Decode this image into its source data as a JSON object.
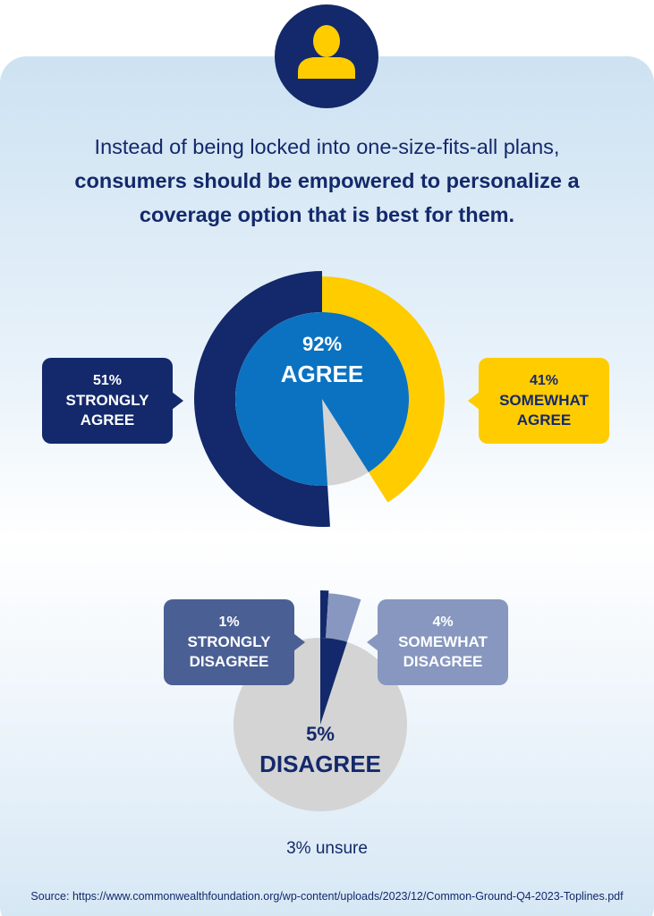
{
  "headline": {
    "lead": "Instead of being locked into one-size-fits-all plans,",
    "bold": "consumers should be empowered to personalize a coverage option that is best for them."
  },
  "chart_data": [
    {
      "type": "pie",
      "total": {
        "value": 92,
        "label": "92%",
        "name": "AGREE"
      },
      "categories": [
        "STRONGLY AGREE",
        "SOMEWHAT AGREE"
      ],
      "values": [
        51,
        41
      ],
      "value_labels": [
        "51%",
        "41%"
      ],
      "colors": [
        "#13296b",
        "#ffcc00"
      ],
      "total_color": "#0b72c1"
    },
    {
      "type": "pie",
      "total": {
        "value": 5,
        "label": "5%",
        "name": "DISAGREE"
      },
      "categories": [
        "STRONGLY DISAGREE",
        "SOMEWHAT DISAGREE"
      ],
      "values": [
        1,
        4
      ],
      "value_labels": [
        "1%",
        "4%"
      ],
      "colors": [
        "#13296b",
        "#8797bf"
      ],
      "total_color": "#13296b"
    }
  ],
  "note": "3% unsure",
  "source": "Source: https://www.commonwealthfoundation.org/wp-content/uploads/2023/12/Common-Ground-Q4-2023-Toplines.pdf"
}
